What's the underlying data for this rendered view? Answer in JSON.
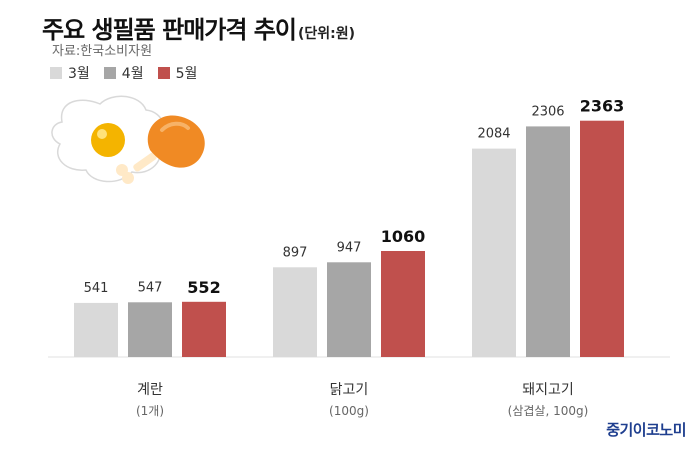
{
  "header": {
    "title": "주요 생필품 판매가격 추이",
    "unit": "(단위:원)",
    "source": "자료:한국소비자원"
  },
  "brand": "중기이코노미",
  "chart_data": {
    "type": "bar",
    "categories": [
      "계란",
      "닭고기",
      "돼지고기"
    ],
    "category_subtitles": [
      "(1개)",
      "(100g)",
      "(삼겹살, 100g)"
    ],
    "series": [
      {
        "name": "3월",
        "color": "#d9d9d9",
        "values": [
          541,
          897,
          2084
        ]
      },
      {
        "name": "4월",
        "color": "#a6a6a6",
        "values": [
          547,
          947,
          2306
        ]
      },
      {
        "name": "5월",
        "color": "#c0504d",
        "values": [
          552,
          1060,
          2363
        ]
      }
    ],
    "highlight_series": "5월",
    "grid": false,
    "legend_position": "top-left"
  }
}
